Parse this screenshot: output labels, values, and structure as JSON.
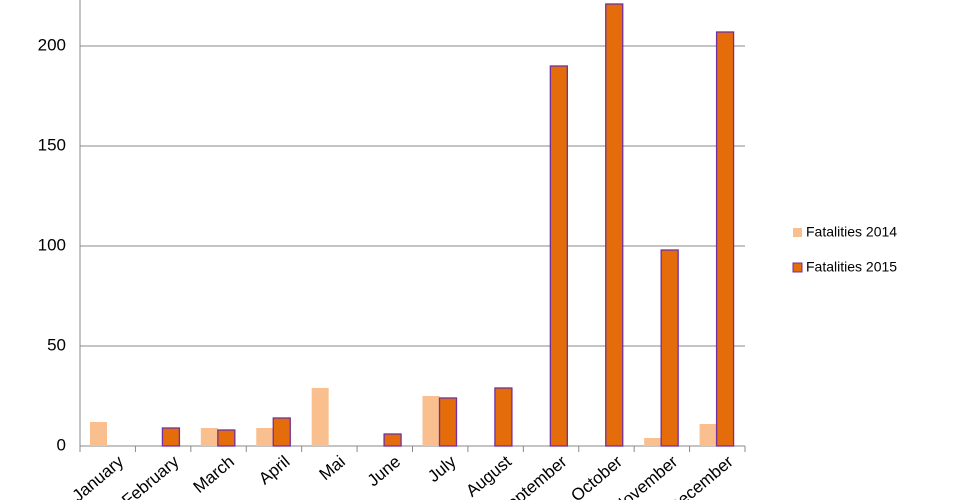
{
  "chart_data": {
    "type": "bar",
    "categories": [
      "January",
      "February",
      "March",
      "April",
      "Mai",
      "June",
      "July",
      "August",
      "September",
      "October",
      "November",
      "December"
    ],
    "series": [
      {
        "name": "Fatalities 2014",
        "color": "#f9bf8f",
        "values": [
          12,
          null,
          9,
          9,
          29,
          null,
          25,
          null,
          null,
          null,
          4,
          11
        ]
      },
      {
        "name": "Fatalities 2015",
        "color": "#e46c0a",
        "values": [
          null,
          9,
          8,
          14,
          null,
          6,
          24,
          29,
          190,
          221,
          98,
          207
        ]
      }
    ],
    "ylim": [
      0,
      223
    ],
    "yticks": [
      0,
      50,
      100,
      150,
      200
    ],
    "grid": true,
    "legend": "right"
  }
}
